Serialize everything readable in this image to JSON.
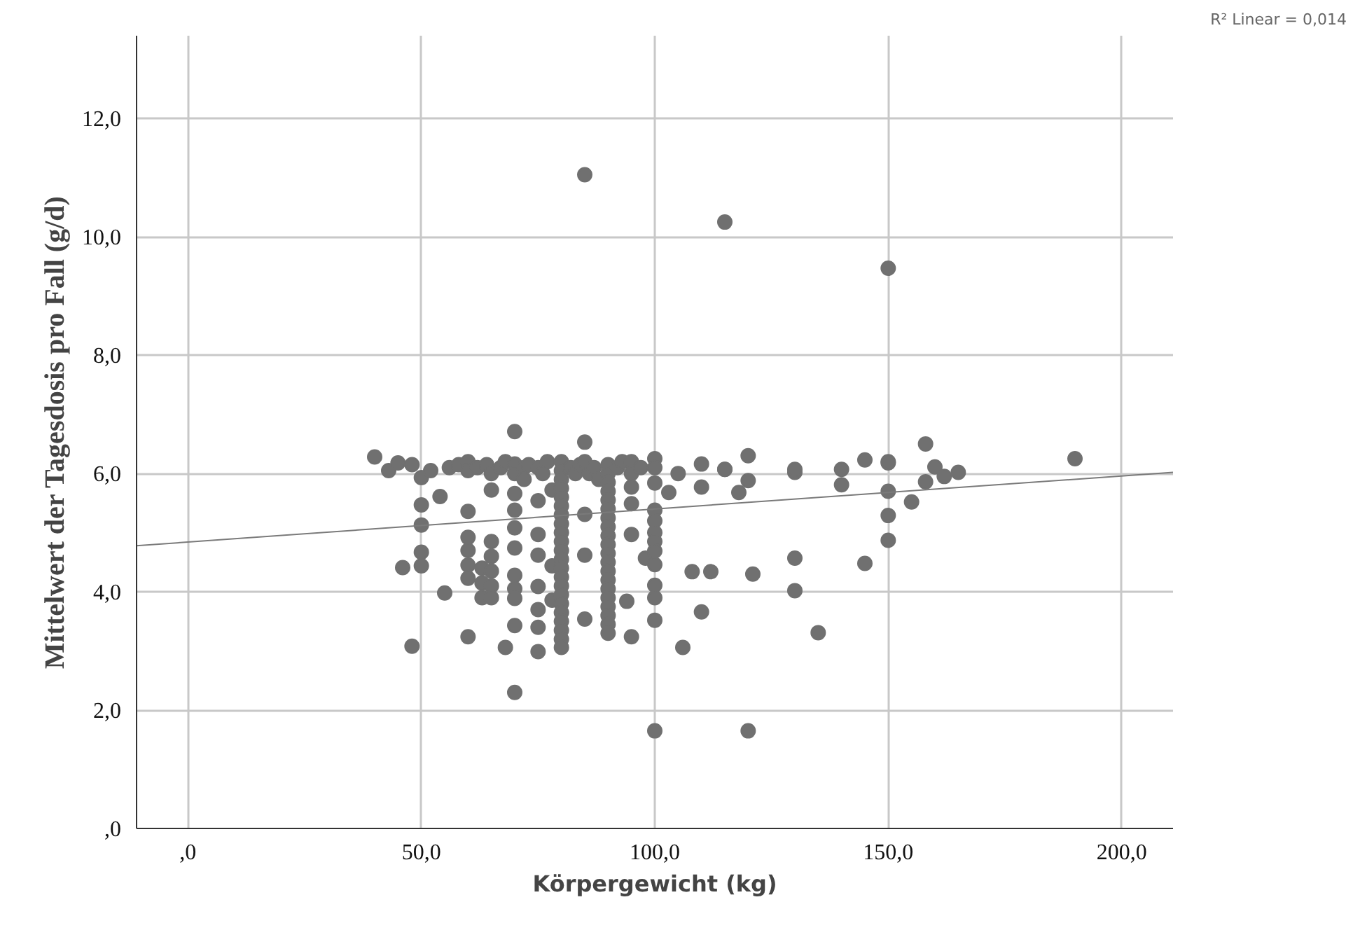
{
  "chart_data": {
    "type": "scatter",
    "xlabel": "Körpergewicht (kg)",
    "ylabel": "Mittelwert der Tagesdosis pro Fall (g/d)",
    "annotations": [
      "R² Linear = 0,014"
    ],
    "xlim": [
      -11,
      211
    ],
    "ylim": [
      0,
      13.4
    ],
    "xticks": [
      {
        "value": 0,
        "label": ",0"
      },
      {
        "value": 50,
        "label": "50,0"
      },
      {
        "value": 100,
        "label": "100,0"
      },
      {
        "value": 150,
        "label": "150,0"
      },
      {
        "value": 200,
        "label": "200,0"
      }
    ],
    "yticks": [
      {
        "value": 0,
        "label": ",0"
      },
      {
        "value": 2,
        "label": "2,0"
      },
      {
        "value": 4,
        "label": "4,0"
      },
      {
        "value": 6,
        "label": "6,0"
      },
      {
        "value": 8,
        "label": "8,0"
      },
      {
        "value": 10,
        "label": "10,0"
      },
      {
        "value": 12,
        "label": "12,0"
      }
    ],
    "grid": true,
    "series": [
      {
        "color": "#707070",
        "marker": "circle",
        "x": [
          40,
          43,
          45,
          48,
          50,
          50,
          50,
          50,
          50,
          46,
          54,
          55,
          48,
          52,
          56,
          58,
          60,
          60,
          60,
          60,
          60,
          60,
          60,
          60,
          62,
          63,
          63,
          63,
          64,
          65,
          65,
          65,
          65,
          65,
          65,
          65,
          67,
          68,
          68,
          70,
          70,
          70,
          70,
          70,
          70,
          70,
          70,
          70,
          70,
          70,
          70,
          72,
          72,
          73,
          75,
          75,
          75,
          75,
          75,
          75,
          75,
          75,
          76,
          77,
          78,
          78,
          78,
          80,
          80,
          80,
          80,
          80,
          80,
          80,
          80,
          80,
          80,
          80,
          80,
          80,
          80,
          80,
          80,
          80,
          80,
          80,
          80,
          80,
          80,
          82,
          83,
          84,
          85,
          85,
          85,
          85,
          85,
          86,
          87,
          88,
          90,
          90,
          90,
          90,
          90,
          90,
          90,
          90,
          90,
          90,
          90,
          90,
          90,
          90,
          90,
          90,
          90,
          90,
          90,
          90,
          92,
          93,
          94,
          95,
          95,
          95,
          95,
          95,
          95,
          97,
          98,
          100,
          100,
          100,
          100,
          100,
          100,
          100,
          100,
          100,
          100,
          100,
          100,
          100,
          103,
          105,
          106,
          108,
          110,
          110,
          110,
          112,
          115,
          115,
          118,
          120,
          120,
          121,
          120,
          130,
          130,
          130,
          130,
          135,
          140,
          140,
          145,
          145,
          150,
          150,
          150,
          150,
          150,
          155,
          158,
          158,
          160,
          162,
          165,
          190,
          85,
          115,
          150
        ],
        "values": [
          6.28,
          6.05,
          6.18,
          6.15,
          5.93,
          5.47,
          5.13,
          4.67,
          4.44,
          4.41,
          5.61,
          3.98,
          3.08,
          6.05,
          6.1,
          6.15,
          6.2,
          6.05,
          5.36,
          4.92,
          4.7,
          4.45,
          4.23,
          3.24,
          6.1,
          4.4,
          4.15,
          3.9,
          6.15,
          6.0,
          5.72,
          4.85,
          4.6,
          4.35,
          4.1,
          3.9,
          6.1,
          3.06,
          6.2,
          6.71,
          6.16,
          6.0,
          5.66,
          5.38,
          5.08,
          4.74,
          4.28,
          4.05,
          3.89,
          3.43,
          2.3,
          6.1,
          5.9,
          6.15,
          6.1,
          5.54,
          4.97,
          4.62,
          4.09,
          3.7,
          3.4,
          2.99,
          6.0,
          6.2,
          5.72,
          4.44,
          3.86,
          6.2,
          6.05,
          5.9,
          5.75,
          5.6,
          5.45,
          5.3,
          5.15,
          5.0,
          4.85,
          4.7,
          4.55,
          4.4,
          4.25,
          4.1,
          3.95,
          3.8,
          3.65,
          3.5,
          3.35,
          3.2,
          3.06,
          6.1,
          6.0,
          6.15,
          6.53,
          6.2,
          5.31,
          4.62,
          3.54,
          6.0,
          6.1,
          5.9,
          6.15,
          6.0,
          5.85,
          5.7,
          5.55,
          5.4,
          5.25,
          5.1,
          4.95,
          4.8,
          4.65,
          4.5,
          4.35,
          4.2,
          4.05,
          3.9,
          3.75,
          3.6,
          3.45,
          3.3,
          6.1,
          6.2,
          3.84,
          6.2,
          6.0,
          5.77,
          5.49,
          4.97,
          3.24,
          6.1,
          4.57,
          6.25,
          6.1,
          5.84,
          5.38,
          5.2,
          5.0,
          4.85,
          4.69,
          4.46,
          4.11,
          3.9,
          3.52,
          1.65,
          5.68,
          6.0,
          3.06,
          4.34,
          6.16,
          5.77,
          3.66,
          4.34,
          6.07,
          10.25,
          5.68,
          6.3,
          5.88,
          4.3,
          1.65,
          6.02,
          6.07,
          4.57,
          4.02,
          3.31,
          6.07,
          5.81,
          6.23,
          4.48,
          6.18,
          5.7,
          5.29,
          4.87,
          9.47,
          5.52,
          6.5,
          5.86,
          6.11,
          5.95,
          6.02,
          6.25,
          11.05,
          6.07,
          6.2
        ]
      },
      {
        "type": "line",
        "marker": "none",
        "color": "#7a7a7a",
        "x": [
          -11,
          211
        ],
        "values": [
          4.78,
          6.02
        ]
      }
    ]
  }
}
